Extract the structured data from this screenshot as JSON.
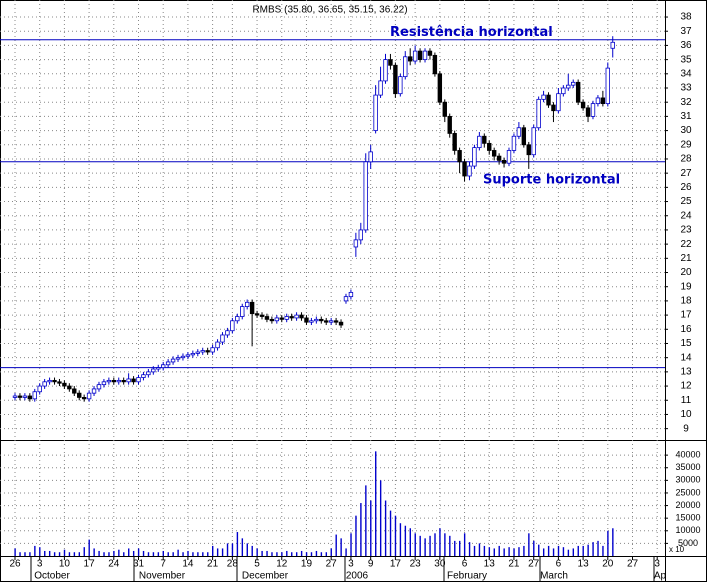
{
  "chart_data": {
    "type": "candlestick",
    "title": "RMBS (35.80, 36.65, 35.15, 36.22)",
    "categories": [
      "26",
      null,
      null,
      null,
      null,
      "3",
      null,
      null,
      null,
      null,
      "10",
      null,
      null,
      null,
      null,
      "17",
      null,
      null,
      null,
      null,
      "24",
      null,
      null,
      null,
      null,
      "31",
      null,
      null,
      null,
      null,
      "7",
      null,
      null,
      null,
      null,
      "14",
      null,
      null,
      null,
      null,
      "21",
      null,
      null,
      null,
      "28",
      null,
      null,
      null,
      null,
      "5",
      null,
      null,
      null,
      null,
      "12",
      null,
      null,
      null,
      null,
      "19",
      null,
      null,
      null,
      null,
      "27",
      null,
      null,
      null,
      "3",
      null,
      null,
      null,
      "9",
      null,
      null,
      null,
      null,
      "17",
      null,
      null,
      null,
      "23",
      null,
      null,
      null,
      null,
      "30",
      null,
      null,
      null,
      null,
      "6",
      null,
      null,
      null,
      null,
      "13",
      null,
      null,
      null,
      null,
      "21",
      null,
      null,
      null,
      "27",
      null,
      null,
      null,
      null,
      "6",
      null,
      null,
      null,
      null,
      "13",
      null,
      null,
      null,
      null,
      "20",
      null,
      null,
      null,
      null,
      "27",
      null,
      null,
      null,
      null,
      "3",
      null
    ],
    "month_labels": [
      "October",
      "November",
      "December",
      "2006",
      "February",
      "March",
      "Ap"
    ],
    "open": [
      11.2,
      11.3,
      11.2,
      11.3,
      11.1,
      11.6,
      12.0,
      12.3,
      12.4,
      12.3,
      12.2,
      12.0,
      11.8,
      11.5,
      11.2,
      11.1,
      11.5,
      11.8,
      12.1,
      12.3,
      12.4,
      12.3,
      12.4,
      12.3,
      12.5,
      12.3,
      12.6,
      12.8,
      13.0,
      13.2,
      13.3,
      13.5,
      13.7,
      13.9,
      14.0,
      14.1,
      14.2,
      14.3,
      14.4,
      14.5,
      14.4,
      14.7,
      15.1,
      15.6,
      15.9,
      16.6,
      16.9,
      17.6,
      17.9,
      17.1,
      17.0,
      16.9,
      16.7,
      16.6,
      16.8,
      16.7,
      16.9,
      16.8,
      17.0,
      16.8,
      16.5,
      16.6,
      16.7,
      16.6,
      16.5,
      16.6,
      16.5,
      18.0,
      18.3,
      21.8,
      22.3,
      23.0,
      27.8,
      30.0,
      32.5,
      33.5,
      35.0,
      34.6,
      32.6,
      33.8,
      35.2,
      34.9,
      35.6,
      35.0,
      35.6,
      35.3,
      34.0,
      32.0,
      31.0,
      29.8,
      28.6,
      27.8,
      26.8,
      27.5,
      28.8,
      29.6,
      29.1,
      28.6,
      28.2,
      27.9,
      27.7,
      28.6,
      29.6,
      30.2,
      29.0,
      28.3,
      30.2,
      32.2,
      32.5,
      31.8,
      31.4,
      32.6,
      33.0,
      33.2,
      33.4,
      32.0,
      31.6,
      31.0,
      31.9,
      32.3,
      31.9,
      35.8,
      null,
      null,
      null,
      null,
      null,
      null,
      null,
      null,
      null,
      null
    ],
    "high": [
      11.5,
      11.5,
      11.5,
      11.5,
      11.8,
      12.2,
      12.5,
      12.6,
      12.6,
      12.5,
      12.4,
      12.2,
      12.0,
      11.7,
      11.4,
      11.7,
      12.0,
      12.3,
      12.5,
      12.6,
      12.6,
      12.6,
      12.6,
      12.9,
      12.7,
      12.8,
      13.0,
      13.2,
      13.4,
      13.5,
      13.7,
      13.9,
      14.1,
      14.2,
      14.3,
      14.4,
      14.5,
      14.6,
      14.7,
      14.7,
      14.9,
      15.3,
      15.8,
      16.1,
      16.8,
      17.1,
      17.8,
      18.1,
      18.1,
      17.3,
      17.2,
      17.1,
      16.9,
      17.0,
      17.0,
      17.1,
      17.1,
      17.2,
      17.2,
      17.0,
      16.8,
      16.9,
      16.9,
      16.8,
      16.8,
      16.8,
      16.7,
      18.5,
      18.8,
      22.8,
      23.5,
      28.4,
      29.0,
      33.2,
      34.5,
      35.4,
      35.4,
      34.8,
      34.0,
      35.6,
      35.8,
      36.0,
      35.8,
      35.8,
      35.8,
      35.5,
      34.2,
      32.2,
      31.2,
      30.0,
      28.8,
      28.0,
      27.8,
      29.0,
      29.9,
      29.8,
      29.3,
      28.8,
      28.4,
      28.1,
      28.8,
      29.8,
      30.6,
      30.4,
      29.2,
      30.4,
      32.4,
      32.8,
      32.7,
      32.0,
      33.0,
      33.2,
      34.0,
      33.6,
      33.6,
      32.2,
      31.8,
      32.1,
      32.5,
      32.8,
      34.8,
      36.65,
      null,
      null,
      null,
      null,
      null,
      null,
      null,
      null,
      null,
      null
    ],
    "low": [
      11.0,
      11.0,
      11.0,
      10.9,
      10.9,
      11.4,
      11.8,
      12.1,
      12.1,
      12.0,
      11.8,
      11.6,
      11.3,
      11.0,
      10.9,
      10.9,
      11.3,
      11.6,
      11.9,
      12.1,
      12.1,
      12.1,
      12.1,
      12.1,
      12.1,
      12.1,
      12.4,
      12.6,
      12.8,
      13.0,
      13.1,
      13.3,
      13.5,
      13.7,
      13.8,
      13.9,
      14.0,
      14.1,
      14.2,
      14.2,
      14.2,
      14.5,
      14.9,
      15.4,
      15.7,
      16.4,
      16.7,
      17.4,
      14.8,
      16.8,
      16.7,
      16.5,
      16.4,
      16.4,
      16.5,
      16.5,
      16.6,
      16.6,
      16.6,
      16.3,
      16.3,
      16.4,
      16.4,
      16.3,
      16.3,
      16.3,
      16.1,
      17.8,
      18.1,
      21.1,
      22.0,
      22.8,
      27.3,
      29.8,
      32.3,
      33.3,
      34.3,
      32.3,
      32.4,
      33.6,
      34.6,
      34.7,
      34.8,
      34.8,
      35.0,
      33.8,
      31.8,
      30.6,
      29.5,
      28.3,
      27.0,
      26.4,
      26.5,
      27.3,
      28.6,
      28.8,
      28.3,
      27.9,
      27.6,
      27.4,
      27.5,
      28.4,
      29.4,
      28.8,
      27.3,
      28.1,
      30.0,
      32.0,
      31.6,
      30.6,
      31.2,
      32.4,
      32.8,
      33.0,
      31.8,
      31.4,
      30.6,
      30.8,
      31.7,
      31.7,
      31.7,
      35.15,
      null,
      null,
      null,
      null,
      null,
      null,
      null,
      null,
      null,
      null
    ],
    "close": [
      11.3,
      11.2,
      11.3,
      11.1,
      11.6,
      12.0,
      12.3,
      12.4,
      12.3,
      12.2,
      12.0,
      11.8,
      11.5,
      11.2,
      11.1,
      11.5,
      11.8,
      12.1,
      12.3,
      12.4,
      12.3,
      12.4,
      12.3,
      12.5,
      12.3,
      12.6,
      12.8,
      13.0,
      13.2,
      13.3,
      13.5,
      13.7,
      13.9,
      14.0,
      14.1,
      14.2,
      14.3,
      14.4,
      14.5,
      14.4,
      14.7,
      15.1,
      15.6,
      15.9,
      16.6,
      16.9,
      17.6,
      17.9,
      17.1,
      17.0,
      16.9,
      16.7,
      16.6,
      16.8,
      16.7,
      16.9,
      16.8,
      17.0,
      16.8,
      16.5,
      16.6,
      16.7,
      16.6,
      16.5,
      16.6,
      16.5,
      16.3,
      18.3,
      18.6,
      22.3,
      23.0,
      27.8,
      28.5,
      32.5,
      33.5,
      35.0,
      34.6,
      32.6,
      33.8,
      35.2,
      34.9,
      35.6,
      35.0,
      35.6,
      35.3,
      34.0,
      32.0,
      31.0,
      29.8,
      28.6,
      27.8,
      26.8,
      27.5,
      28.8,
      29.6,
      29.1,
      28.6,
      28.2,
      27.9,
      27.7,
      28.6,
      29.6,
      30.2,
      29.0,
      28.3,
      30.2,
      32.2,
      32.5,
      31.8,
      31.4,
      32.6,
      33.0,
      33.2,
      33.4,
      32.0,
      31.6,
      31.0,
      31.9,
      32.3,
      31.9,
      34.4,
      36.22,
      null,
      null,
      null,
      null,
      null,
      null,
      null,
      null,
      null,
      null
    ],
    "volume": [
      3000,
      1500,
      1500,
      1500,
      4000,
      3500,
      2000,
      2000,
      1500,
      1500,
      2500,
      1500,
      1500,
      1500,
      3500,
      6500,
      3000,
      2000,
      1500,
      1500,
      2000,
      2500,
      1500,
      3000,
      2000,
      3000,
      2000,
      1500,
      1500,
      1500,
      2000,
      1500,
      1500,
      2500,
      1500,
      2000,
      1500,
      1500,
      1500,
      1500,
      4000,
      3000,
      3000,
      5000,
      5000,
      9500,
      7000,
      5000,
      4000,
      3000,
      2000,
      2000,
      1500,
      1500,
      1500,
      2000,
      1500,
      1500,
      2000,
      1500,
      1500,
      2000,
      1500,
      1500,
      3000,
      8500,
      7000,
      3000,
      9000,
      16000,
      21000,
      28000,
      22000,
      41500,
      30000,
      22000,
      18000,
      16000,
      13000,
      12000,
      11000,
      9000,
      8000,
      7000,
      8000,
      9000,
      11000,
      9000,
      8000,
      6000,
      6000,
      9000,
      5500,
      4000,
      5000,
      4000,
      3500,
      3000,
      4000,
      3000,
      3500,
      3000,
      3500,
      4000,
      9000,
      6000,
      4500,
      3000,
      4000,
      3000,
      4000,
      3500,
      2500,
      3000,
      4000,
      4000,
      4500,
      5500,
      6000,
      4000,
      10000,
      11000,
      null,
      null,
      null,
      null,
      null,
      null,
      null,
      null,
      null,
      null
    ],
    "up_color": "#0000cc",
    "down_color": "#000000",
    "volume_color": "#0000cc",
    "level_color": "#0000c0",
    "levels": [
      {
        "label": "Resistência horizontal",
        "value": 36.4
      },
      {
        "label": "Suporte horizontal",
        "value": 27.8
      },
      {
        "value": 13.3
      }
    ],
    "ylim": [
      8.2,
      39.2
    ],
    "yticks": [
      9,
      10,
      11,
      12,
      13,
      14,
      15,
      16,
      17,
      18,
      19,
      20,
      21,
      22,
      23,
      24,
      25,
      26,
      27,
      28,
      29,
      30,
      31,
      32,
      33,
      34,
      35,
      36,
      37,
      38
    ],
    "y2lim": [
      0,
      46000
    ],
    "y2ticks": [
      5000,
      10000,
      15000,
      20000,
      25000,
      30000,
      35000,
      40000
    ],
    "y2_unit_label": "x 10",
    "grid": true
  }
}
